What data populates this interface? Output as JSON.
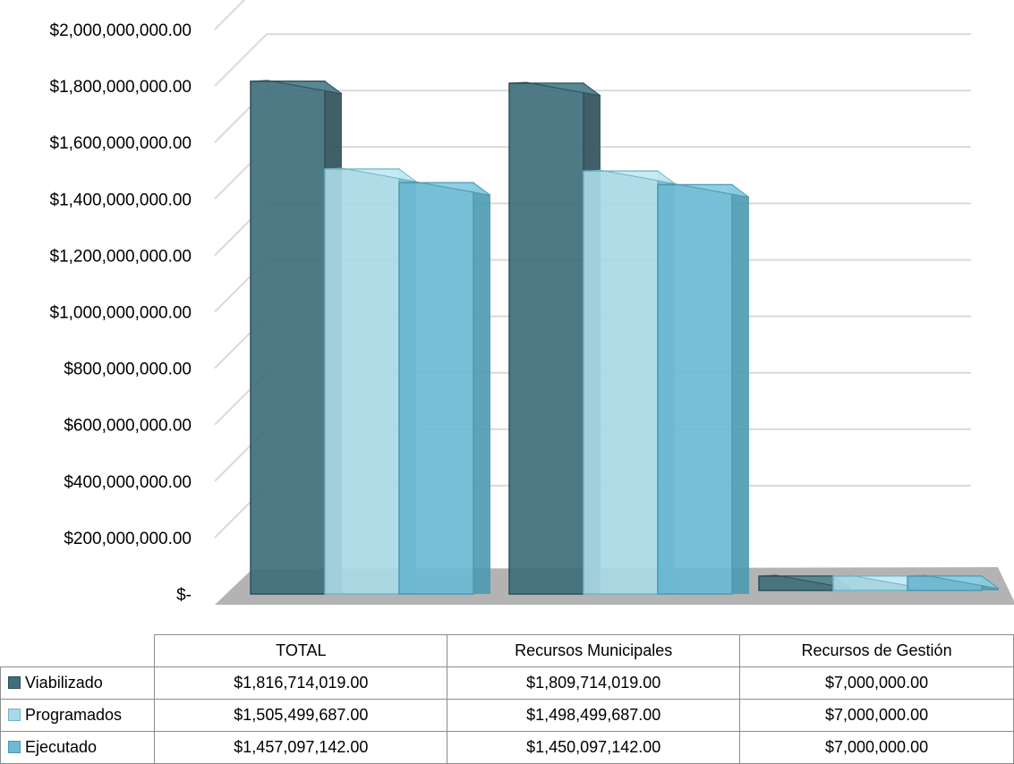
{
  "chart_data": {
    "type": "bar",
    "title": "",
    "xlabel": "",
    "ylabel": "",
    "categories": [
      "TOTAL",
      "Recursos Municipales",
      "Recursos de Gestión"
    ],
    "series": [
      {
        "name": "Viabilizado",
        "values": [
          1816714019,
          1809714019,
          7000000
        ],
        "display_values": [
          "$1,816,714,019.00",
          "$1,809,714,019.00",
          "$7,000,000.00"
        ],
        "color": "#3f6f7c",
        "side_color": "#2c4e58",
        "top_color": "#5a8a97"
      },
      {
        "name": "Programados",
        "values": [
          1505499687,
          1498499687,
          7000000
        ],
        "display_values": [
          "$1,505,499,687.00",
          "$1,498,499,687.00",
          "$7,000,000.00"
        ],
        "color": "#a9d9e6",
        "side_color": "#6fb5c8",
        "top_color": "#c9ecf5"
      },
      {
        "name": "Ejecutado",
        "values": [
          1457097142,
          1450097142,
          7000000
        ],
        "display_values": [
          "$1,457,097,142.00",
          "$1,450,097,142.00",
          "$7,000,000.00"
        ],
        "color": "#6bbad2",
        "side_color": "#4d9ab1",
        "top_color": "#8fd0e2"
      }
    ],
    "ylim": [
      0,
      2000000000
    ],
    "y_tick_labels": [
      "$-",
      "$200,000,000.00",
      "$400,000,000.00",
      "$600,000,000.00",
      "$800,000,000.00",
      "$1,000,000,000.00",
      "$1,200,000,000.00",
      "$1,400,000,000.00",
      "$1,600,000,000.00",
      "$1,800,000,000.00",
      "$2,000,000,000.00"
    ],
    "grid": true,
    "legend": "data-table-below",
    "floor_color": "#b3b3b3",
    "grid_color": "#d9d9d9"
  }
}
